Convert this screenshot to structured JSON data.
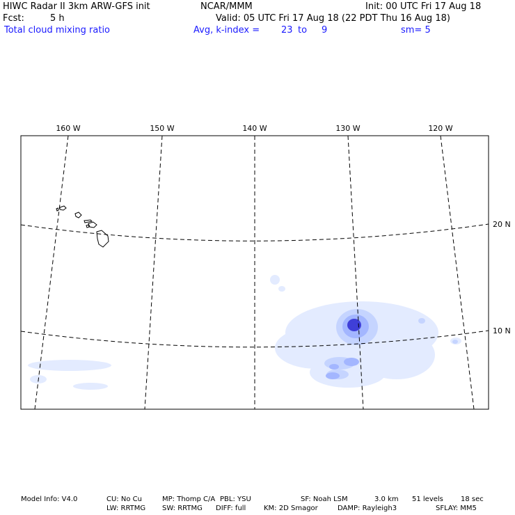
{
  "header": {
    "line1_left": "HIWC Radar II 3km ARW-GFS init",
    "line1_mid": "NCAR/MMM",
    "line1_right": "Init: 00 UTC Fri 17 Aug 18",
    "line2_left": "Fcst:",
    "line2_hours": "5 h",
    "line2_right": "Valid: 05 UTC Fri 17 Aug 18 (22 PDT Thu 16 Aug 18)",
    "line3_field": "Total cloud mixing ratio",
    "line3_avg": "Avg, k-index =",
    "line3_k_from": "23",
    "line3_to": "to",
    "line3_k_to": "9",
    "line3_sm": "sm= 5"
  },
  "map": {
    "longitude_labels": [
      "160 W",
      "150 W",
      "140 W",
      "130 W",
      "120 W"
    ],
    "latitude_labels": [
      "20 N",
      "10 N"
    ],
    "field_colors": {
      "light": "#e3ebff",
      "medium": "#c5d4ff",
      "strong": "#a3b6ff",
      "core": "#3f3fd8",
      "land_outline": "#000000",
      "grid": "#000000"
    }
  },
  "footer": {
    "row1": [
      "Model Info: V4.0",
      "CU: No Cu",
      "MP: Thomp C/A",
      "PBL: YSU",
      "SF: Noah LSM",
      "3.0 km",
      "51 levels",
      "18 sec"
    ],
    "row2": [
      "LW: RRTMG",
      "SW: RRTMG",
      "DIFF: full",
      "KM: 2D Smagor",
      "DAMP: Rayleigh3",
      "SFLAY: MM5"
    ]
  }
}
